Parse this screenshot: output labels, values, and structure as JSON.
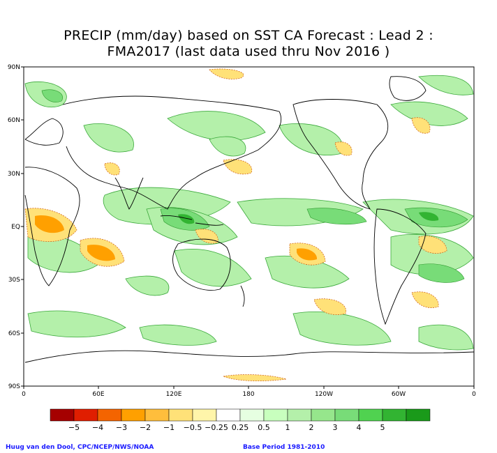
{
  "title": {
    "line1": "PRECIP (mm/day) based on SST CA Forecast : Lead 2 :",
    "line2": "FMA2017 (last data used thru Nov 2016 )"
  },
  "lat_ticks": [
    "90N",
    "60N",
    "30N",
    "EQ",
    "30S",
    "60S",
    "90S"
  ],
  "lon_ticks": [
    "0",
    "60E",
    "120E",
    "180",
    "120W",
    "60W",
    "0"
  ],
  "legend": {
    "colors": [
      "#a50000",
      "#e01e00",
      "#f46400",
      "#ffa000",
      "#ffbe3c",
      "#ffe178",
      "#fff5aa",
      "#ffffff",
      "#e6ffe1",
      "#c8ffbe",
      "#b4f0aa",
      "#96e68c",
      "#78dc78",
      "#50d250",
      "#32b432",
      "#1a9a1a"
    ],
    "labels": [
      "−5",
      "−4",
      "−3",
      "−2",
      "−1",
      "−0.5",
      "−0.25",
      "0.25",
      "0.5",
      "1",
      "2",
      "3",
      "4",
      "5"
    ]
  },
  "credits": {
    "left": "Huug van den Dool, CPC/NCEP/NWS/NOAA",
    "right": "Base Period 1981-2010"
  }
}
